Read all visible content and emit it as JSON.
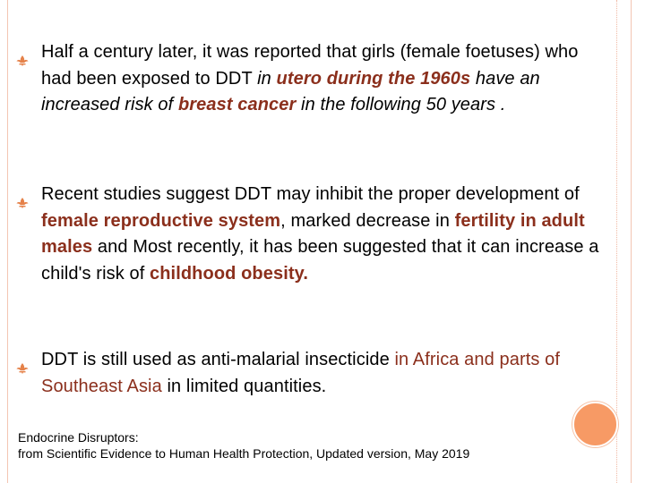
{
  "colors": {
    "accent": "#e5824a",
    "highlight": "#8b2f1c",
    "frame": "#f3c5b3"
  },
  "bullet_icon": "fleur-de-lis-icon",
  "bullets": [
    {
      "t1": "Half a century later, it was reported that girls (female foetuses) who had been exposed to DDT ",
      "t2": "in ",
      "t3": "utero during the 1960s",
      "t4": " have an increased risk of ",
      "t5": "breast cancer",
      "t6": " in the following 50 years ."
    },
    {
      "t1": "Recent studies suggest DDT may inhibit the proper development of ",
      "t2": "female reproductive system",
      "t3": ", marked decrease in ",
      "t4": "fertility in adult males",
      "t5": " and Most recently, it has been suggested that it can increase a child's risk of ",
      "t6": "childhood obesity."
    },
    {
      "t1": "DDT is still used as anti-malarial insecticide ",
      "t2": "in Africa and parts of Southeast Asia",
      "t3": " in limited quantities."
    }
  ],
  "citation": {
    "line1": "Endocrine Disruptors:",
    "line2": "from Scientific Evidence to Human Health Protection, Updated version, May 2019"
  }
}
